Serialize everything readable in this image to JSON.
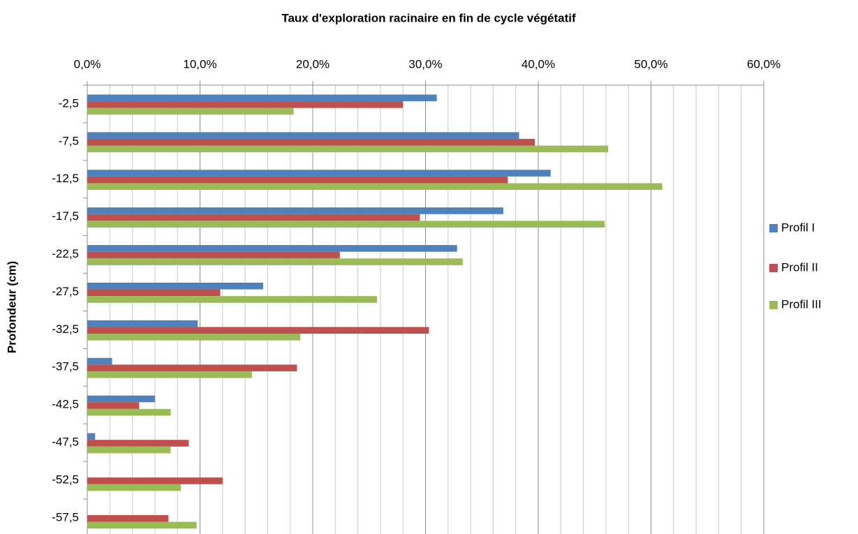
{
  "chart_data": {
    "type": "bar",
    "orientation": "horizontal",
    "title": "Taux d'exploration racinaire en fin de cycle végétatif",
    "y_label": "Profondeur (cm)",
    "categories": [
      "-2,5",
      "-7,5",
      "-12,5",
      "-17,5",
      "-22,5",
      "-27,5",
      "-32,5",
      "-37,5",
      "-42,5",
      "-47,5",
      "-52,5",
      "-57,5"
    ],
    "series": [
      {
        "name": "Profil I",
        "color": "#4f81bd",
        "values": [
          31.0,
          38.3,
          41.1,
          36.9,
          32.8,
          15.6,
          9.8,
          2.2,
          6.0,
          0.7,
          0,
          0
        ]
      },
      {
        "name": "Profil II",
        "color": "#c0504d",
        "values": [
          28.0,
          39.7,
          37.3,
          29.5,
          22.4,
          11.8,
          30.3,
          18.6,
          4.6,
          9.0,
          12.0,
          7.2
        ]
      },
      {
        "name": "Profil III",
        "color": "#9bbb59",
        "values": [
          18.3,
          46.2,
          51.0,
          45.9,
          33.3,
          25.7,
          18.9,
          14.6,
          7.4,
          7.4,
          8.3,
          9.7
        ]
      }
    ],
    "xlim": [
      0,
      60
    ],
    "xticks": [
      {
        "value": 0,
        "label": "0,0%"
      },
      {
        "value": 10,
        "label": "10,0%"
      },
      {
        "value": 20,
        "label": "20,0%"
      },
      {
        "value": 30,
        "label": "30,0%"
      },
      {
        "value": 40,
        "label": "40,0%"
      },
      {
        "value": 50,
        "label": "50,0%"
      },
      {
        "value": 60,
        "label": "60,0%"
      }
    ],
    "xminorticks": [
      2,
      4,
      6,
      8,
      12,
      14,
      16,
      18,
      22,
      24,
      26,
      28,
      32,
      34,
      36,
      38,
      42,
      44,
      46,
      48,
      52,
      54,
      56,
      58
    ],
    "grid": true,
    "legend": "right"
  }
}
